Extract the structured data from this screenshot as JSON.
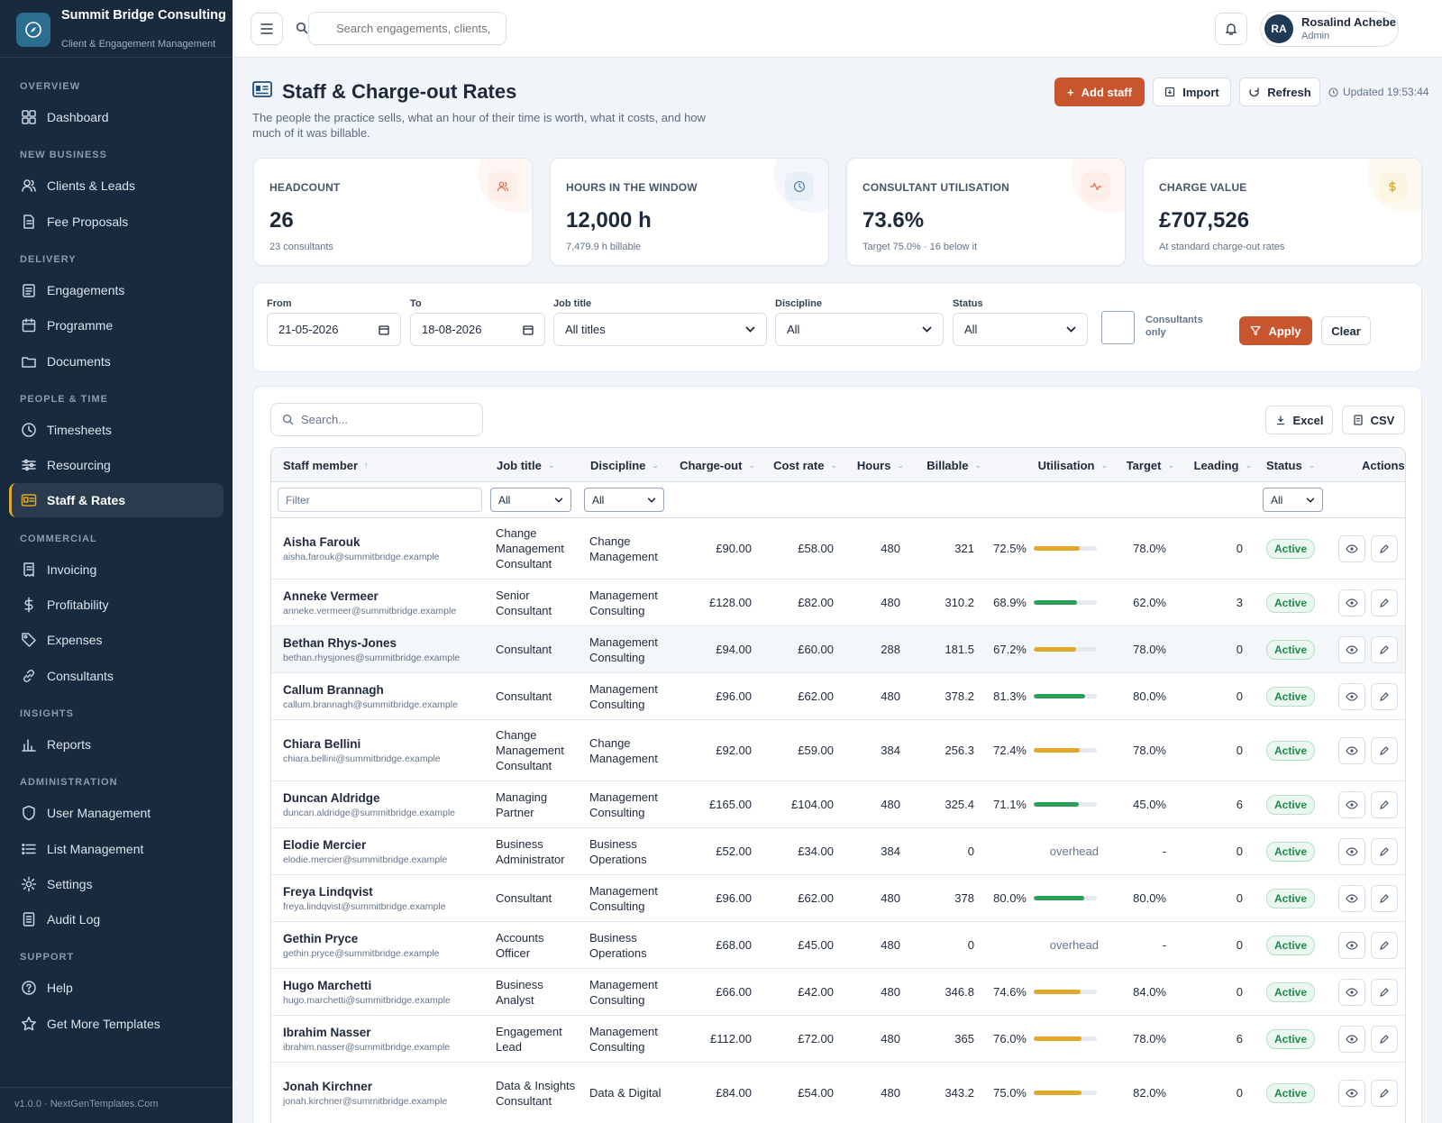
{
  "brand": {
    "name": "Summit Bridge Consulting",
    "subtitle": "Client & Engagement Management"
  },
  "sidebar": {
    "sections": [
      {
        "label": "OVERVIEW",
        "items": [
          {
            "label": "Dashboard",
            "icon": "dashboard-icon"
          }
        ]
      },
      {
        "label": "NEW BUSINESS",
        "items": [
          {
            "label": "Clients & Leads",
            "icon": "users-icon"
          },
          {
            "label": "Fee Proposals",
            "icon": "document-icon"
          }
        ]
      },
      {
        "label": "DELIVERY",
        "items": [
          {
            "label": "Engagements",
            "icon": "clipboard-icon"
          },
          {
            "label": "Programme",
            "icon": "calendar-icon"
          },
          {
            "label": "Documents",
            "icon": "folder-icon"
          }
        ]
      },
      {
        "label": "PEOPLE & TIME",
        "items": [
          {
            "label": "Timesheets",
            "icon": "clock-icon"
          },
          {
            "label": "Resourcing",
            "icon": "sliders-icon"
          },
          {
            "label": "Staff & Rates",
            "icon": "id-card-icon",
            "active": true
          }
        ]
      },
      {
        "label": "COMMERCIAL",
        "items": [
          {
            "label": "Invoicing",
            "icon": "invoice-icon"
          },
          {
            "label": "Profitability",
            "icon": "dollar-icon"
          },
          {
            "label": "Expenses",
            "icon": "tag-icon"
          },
          {
            "label": "Consultants",
            "icon": "link-icon"
          }
        ]
      },
      {
        "label": "INSIGHTS",
        "items": [
          {
            "label": "Reports",
            "icon": "bar-chart-icon"
          }
        ]
      },
      {
        "label": "ADMINISTRATION",
        "items": [
          {
            "label": "User Management",
            "icon": "shield-icon"
          },
          {
            "label": "List Management",
            "icon": "list-icon"
          },
          {
            "label": "Settings",
            "icon": "gear-icon"
          },
          {
            "label": "Audit Log",
            "icon": "log-icon"
          }
        ]
      },
      {
        "label": "SUPPORT",
        "items": [
          {
            "label": "Help",
            "icon": "help-icon"
          },
          {
            "label": "Get More Templates",
            "icon": "star-icon"
          }
        ]
      }
    ],
    "footer": "v1.0.0 · NextGenTemplates.Com"
  },
  "topbar": {
    "search_placeholder": "Search engagements, clients, s",
    "user": {
      "initials": "RA",
      "name": "Rosalind Achebe",
      "role": "Admin"
    }
  },
  "page": {
    "title": "Staff & Charge-out Rates",
    "description": "The people the practice sells, what an hour of their time is worth, what it costs, and how much of it was billable.",
    "actions": {
      "add": "Add staff",
      "import": "Import",
      "refresh": "Refresh"
    },
    "updated": "Updated 19:53:44"
  },
  "kpis": [
    {
      "label": "HEADCOUNT",
      "value": "26",
      "sub": "23 consultants",
      "icon": "users-icon",
      "color": "#e0664a",
      "bg": "#fdeee9"
    },
    {
      "label": "HOURS IN THE WINDOW",
      "value": "12,000 h",
      "sub": "7,479.9 h billable",
      "icon": "clock-icon",
      "color": "#4b7fa8",
      "bg": "#e8f0f7"
    },
    {
      "label": "CONSULTANT UTILISATION",
      "value": "73.6%",
      "sub": "Target 75.0% · 16 below it",
      "icon": "activity-icon",
      "color": "#e0664a",
      "bg": "#fdeee9"
    },
    {
      "label": "CHARGE VALUE",
      "value": "£707,526",
      "sub": "At standard charge-out rates",
      "icon": "dollar-icon",
      "color": "#d4a017",
      "bg": "#fcf5e1"
    }
  ],
  "filters": {
    "from_label": "From",
    "from_value": "21-05-2026",
    "to_label": "To",
    "to_value": "18-08-2026",
    "job_label": "Job title",
    "job_value": "All titles",
    "discipline_label": "Discipline",
    "discipline_value": "All",
    "status_label": "Status",
    "status_value": "All",
    "consultants_label": "Consultants only",
    "apply": "Apply",
    "clear": "Clear"
  },
  "table": {
    "search_placeholder": "Search...",
    "export": {
      "excel": "Excel",
      "csv": "CSV"
    },
    "columns": [
      "Staff member",
      "Job title",
      "Discipline",
      "Charge-out",
      "Cost rate",
      "Hours",
      "Billable",
      "Utilisation",
      "Target",
      "Leading",
      "Status",
      "Actions"
    ],
    "filter_row": {
      "text_placeholder": "Filter",
      "job": "All",
      "discipline": "All",
      "status": "All"
    },
    "rows": [
      {
        "name": "Aisha Farouk",
        "email": "aisha.farouk@summitbridge.example",
        "job": "Change Management Consultant",
        "discipline": "Change Management",
        "charge": "£90.00",
        "cost": "£58.00",
        "hours": "480",
        "billable": "321",
        "util": "72.5%",
        "util_pct": 72.5,
        "target": "78.0%",
        "leading": "0",
        "status": "Active",
        "tall": true
      },
      {
        "name": "Anneke Vermeer",
        "email": "anneke.vermeer@summitbridge.example",
        "job": "Senior Consultant",
        "discipline": "Management Consulting",
        "charge": "£128.00",
        "cost": "£82.00",
        "hours": "480",
        "billable": "310.2",
        "util": "68.9%",
        "util_pct": 68.9,
        "target": "62.0%",
        "leading": "3",
        "status": "Active"
      },
      {
        "name": "Bethan Rhys-Jones",
        "email": "bethan.rhysjones@summitbridge.example",
        "job": "Consultant",
        "discipline": "Management Consulting",
        "charge": "£94.00",
        "cost": "£60.00",
        "hours": "288",
        "billable": "181.5",
        "util": "67.2%",
        "util_pct": 67.2,
        "target": "78.0%",
        "leading": "0",
        "status": "Active",
        "highlight": true
      },
      {
        "name": "Callum Brannagh",
        "email": "callum.brannagh@summitbridge.example",
        "job": "Consultant",
        "discipline": "Management Consulting",
        "charge": "£96.00",
        "cost": "£62.00",
        "hours": "480",
        "billable": "378.2",
        "util": "81.3%",
        "util_pct": 81.3,
        "target": "80.0%",
        "leading": "0",
        "status": "Active"
      },
      {
        "name": "Chiara Bellini",
        "email": "chiara.bellini@summitbridge.example",
        "job": "Change Management Consultant",
        "discipline": "Change Management",
        "charge": "£92.00",
        "cost": "£59.00",
        "hours": "384",
        "billable": "256.3",
        "util": "72.4%",
        "util_pct": 72.4,
        "target": "78.0%",
        "leading": "0",
        "status": "Active",
        "tall": true
      },
      {
        "name": "Duncan Aldridge",
        "email": "duncan.aldridge@summitbridge.example",
        "job": "Managing Partner",
        "discipline": "Management Consulting",
        "charge": "£165.00",
        "cost": "£104.00",
        "hours": "480",
        "billable": "325.4",
        "util": "71.1%",
        "util_pct": 71.1,
        "target": "45.0%",
        "leading": "6",
        "status": "Active"
      },
      {
        "name": "Elodie Mercier",
        "email": "elodie.mercier@summitbridge.example",
        "job": "Business Administrator",
        "discipline": "Business Operations",
        "charge": "£52.00",
        "cost": "£34.00",
        "hours": "384",
        "billable": "0",
        "util": "overhead",
        "util_pct": null,
        "target": "-",
        "leading": "0",
        "status": "Active"
      },
      {
        "name": "Freya Lindqvist",
        "email": "freya.lindqvist@summitbridge.example",
        "job": "Consultant",
        "discipline": "Management Consulting",
        "charge": "£96.00",
        "cost": "£62.00",
        "hours": "480",
        "billable": "378",
        "util": "80.0%",
        "util_pct": 80.0,
        "target": "80.0%",
        "leading": "0",
        "status": "Active"
      },
      {
        "name": "Gethin Pryce",
        "email": "gethin.pryce@summitbridge.example",
        "job": "Accounts Officer",
        "discipline": "Business Operations",
        "charge": "£68.00",
        "cost": "£45.00",
        "hours": "480",
        "billable": "0",
        "util": "overhead",
        "util_pct": null,
        "target": "-",
        "leading": "0",
        "status": "Active"
      },
      {
        "name": "Hugo Marchetti",
        "email": "hugo.marchetti@summitbridge.example",
        "job": "Business Analyst",
        "discipline": "Management Consulting",
        "charge": "£66.00",
        "cost": "£42.00",
        "hours": "480",
        "billable": "346.8",
        "util": "74.6%",
        "util_pct": 74.6,
        "target": "84.0%",
        "leading": "0",
        "status": "Active"
      },
      {
        "name": "Ibrahim Nasser",
        "email": "ibrahim.nasser@summitbridge.example",
        "job": "Engagement Lead",
        "discipline": "Management Consulting",
        "charge": "£112.00",
        "cost": "£72.00",
        "hours": "480",
        "billable": "365",
        "util": "76.0%",
        "util_pct": 76.0,
        "target": "78.0%",
        "leading": "6",
        "status": "Active"
      },
      {
        "name": "Jonah Kirchner",
        "email": "jonah.kirchner@summitbridge.example",
        "job": "Data & Insights Consultant",
        "discipline": "Data & Digital",
        "charge": "£84.00",
        "cost": "£54.00",
        "hours": "480",
        "billable": "343.2",
        "util": "75.0%",
        "util_pct": 75.0,
        "target": "82.0%",
        "leading": "0",
        "status": "Active",
        "tall": true
      }
    ]
  },
  "colors": {
    "accent": "#c8552e",
    "sidebar": "#182a3d",
    "util_green": "#2e9e5b",
    "util_amber": "#e0a92a"
  }
}
